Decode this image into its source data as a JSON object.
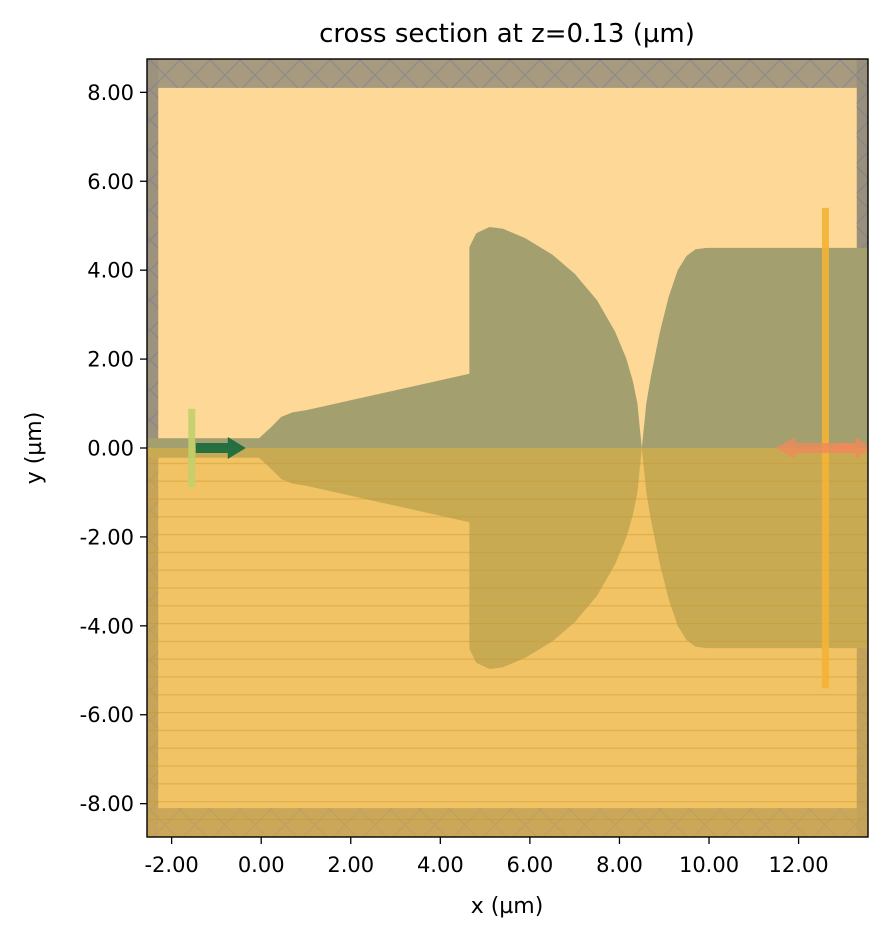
{
  "chart_data": {
    "type": "cross-section",
    "title": "cross section at z=0.13 (µm)",
    "xlabel": "x (µm)",
    "ylabel": "y (µm)",
    "xlim": [
      -2.55,
      13.55
    ],
    "ylim": [
      -8.75,
      8.75
    ],
    "xticks": [
      -2,
      0,
      2,
      4,
      6,
      8,
      10,
      12
    ],
    "yticks": [
      -8,
      -6,
      -4,
      -2,
      0,
      2,
      4,
      6,
      8
    ],
    "xtick_labels": [
      "-2.00",
      "0.00",
      "2.00",
      "4.00",
      "6.00",
      "8.00",
      "10.00",
      "12.00"
    ],
    "ytick_labels": [
      "-8.00",
      "-6.00",
      "-4.00",
      "-2.00",
      "0.00",
      "2.00",
      "4.00",
      "6.00",
      "8.00"
    ],
    "grid": false,
    "simulation_domain": {
      "x": [
        -2.3,
        13.3
      ],
      "y": [
        -8.1,
        8.1
      ]
    },
    "pml_thickness": 0.3,
    "symmetry_plane": "y < 0",
    "input_waveguide": {
      "x": [
        -2.6,
        0.0
      ],
      "half_width": 0.22
    },
    "device_outline_upper": [
      [
        -0.05,
        0.22
      ],
      [
        0.2,
        0.45
      ],
      [
        0.45,
        0.7
      ],
      [
        0.7,
        0.8
      ],
      [
        1.0,
        0.85
      ],
      [
        4.65,
        1.67
      ],
      [
        4.65,
        4.52
      ],
      [
        4.8,
        4.83
      ],
      [
        5.1,
        4.97
      ],
      [
        5.4,
        4.93
      ],
      [
        5.9,
        4.72
      ],
      [
        6.5,
        4.35
      ],
      [
        7.0,
        3.92
      ],
      [
        7.5,
        3.32
      ],
      [
        7.9,
        2.62
      ],
      [
        8.15,
        2.02
      ],
      [
        8.3,
        1.5
      ],
      [
        8.4,
        1.0
      ],
      [
        8.5,
        0.0
      ],
      [
        8.6,
        1.0
      ],
      [
        8.7,
        1.6
      ],
      [
        8.9,
        2.6
      ],
      [
        9.1,
        3.4
      ],
      [
        9.3,
        4.0
      ],
      [
        9.5,
        4.32
      ],
      [
        9.7,
        4.47
      ],
      [
        9.95,
        4.5
      ],
      [
        13.6,
        4.5
      ]
    ],
    "source": {
      "x": -1.55,
      "y_span": [
        -0.88,
        0.88
      ],
      "direction": "+x"
    },
    "monitor": {
      "x": 12.6,
      "y_span": [
        -5.4,
        5.4
      ],
      "direction": "-x"
    },
    "colors": {
      "background": "#fdd896",
      "structure": "#a39f6f",
      "pml": "#a89a7e",
      "symmetry_overlay": "#e8b23c",
      "source": "#c2d06a",
      "source_arrow": "#1d6b3e",
      "monitor": "#f4b334",
      "monitor_arrow": "#f08a5a"
    }
  }
}
